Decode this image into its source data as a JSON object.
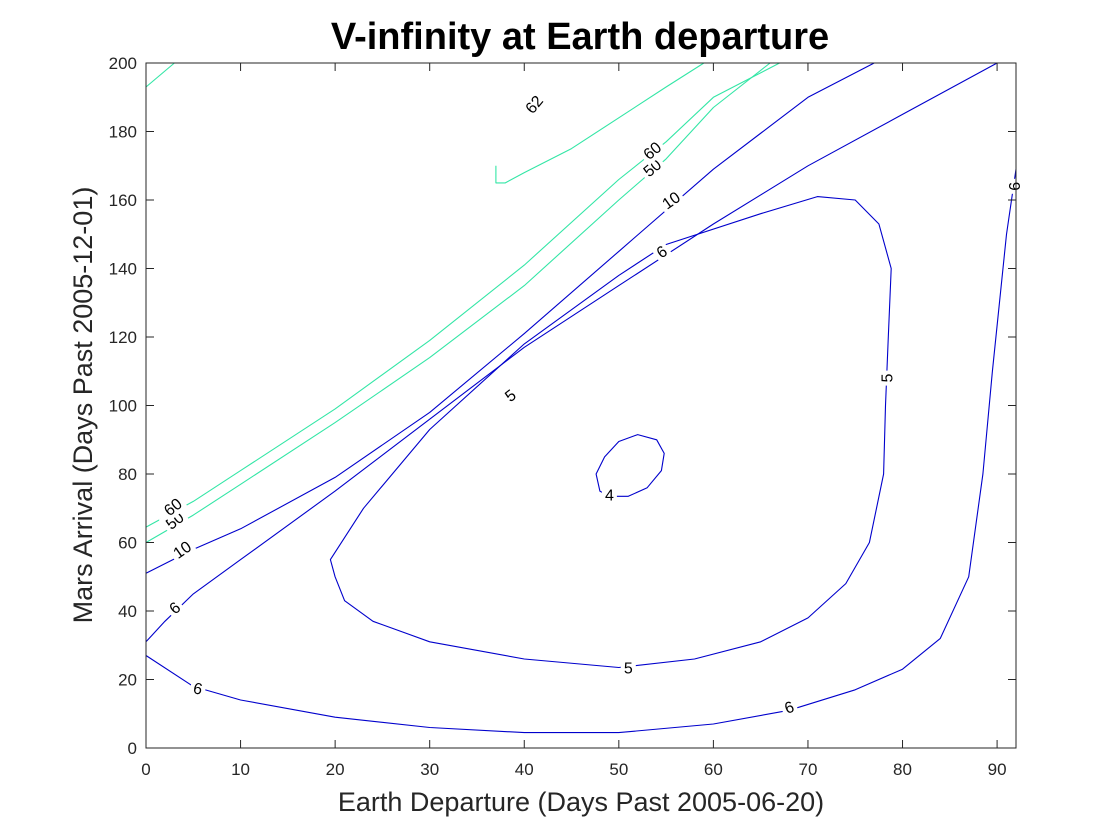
{
  "chart_data": {
    "type": "contour",
    "title": "V-infinity at Earth departure",
    "xlabel": "Earth Departure (Days Past 2005-06-20)",
    "ylabel": "Mars Arrival (Days Past 2005-12-01)",
    "xlim": [
      0,
      92
    ],
    "ylim": [
      0,
      200
    ],
    "xticks": [
      0,
      10,
      20,
      30,
      40,
      50,
      60,
      70,
      80,
      90
    ],
    "yticks": [
      0,
      20,
      40,
      60,
      80,
      100,
      120,
      140,
      160,
      180,
      200
    ],
    "grid": false,
    "colors": {
      "low": "#0000cc",
      "high": "#33e6a6"
    },
    "contours": [
      {
        "level": 4,
        "color": "#0000cc",
        "closed": true,
        "points": [
          [
            48,
            75
          ],
          [
            47.6,
            80
          ],
          [
            48.5,
            85
          ],
          [
            50,
            89.5
          ],
          [
            52,
            91.5
          ],
          [
            54,
            90
          ],
          [
            54.8,
            86
          ],
          [
            54.5,
            81
          ],
          [
            53,
            76
          ],
          [
            51,
            73.5
          ],
          [
            49,
            73.5
          ]
        ]
      },
      {
        "level": 5,
        "color": "#0000cc",
        "closed": true,
        "points": [
          [
            20,
            50
          ],
          [
            21,
            43
          ],
          [
            24,
            37
          ],
          [
            30,
            31
          ],
          [
            40,
            26
          ],
          [
            50,
            23.5
          ],
          [
            58,
            26
          ],
          [
            65,
            31
          ],
          [
            70,
            38
          ],
          [
            74,
            48
          ],
          [
            76.5,
            60
          ],
          [
            78,
            80
          ],
          [
            78.2,
            100
          ],
          [
            78.5,
            120
          ],
          [
            78.8,
            140
          ],
          [
            77.5,
            153
          ],
          [
            75,
            160
          ],
          [
            71,
            161
          ],
          [
            65,
            156
          ],
          [
            55,
            147
          ],
          [
            50,
            138
          ],
          [
            40,
            118
          ],
          [
            30,
            93
          ],
          [
            23,
            70
          ],
          [
            19.5,
            55
          ]
        ]
      },
      {
        "level": 6,
        "color": "#0000cc",
        "closed": false,
        "points": [
          [
            0,
            27
          ],
          [
            5,
            18
          ],
          [
            10,
            14
          ],
          [
            20,
            9
          ],
          [
            30,
            6
          ],
          [
            40,
            4.5
          ],
          [
            50,
            4.5
          ],
          [
            60,
            7
          ],
          [
            68,
            11
          ],
          [
            75,
            17
          ],
          [
            80,
            23
          ],
          [
            84,
            32
          ],
          [
            87,
            50
          ],
          [
            88.5,
            80
          ],
          [
            89.5,
            110
          ],
          [
            91,
            150
          ],
          [
            92,
            169
          ]
        ]
      },
      {
        "level": 6,
        "color": "#0000cc",
        "closed": false,
        "points": [
          [
            0,
            31
          ],
          [
            2,
            37
          ],
          [
            5,
            45
          ],
          [
            10,
            55
          ],
          [
            20,
            75
          ],
          [
            30,
            96
          ],
          [
            40,
            117
          ],
          [
            50,
            135
          ],
          [
            60,
            153
          ],
          [
            70,
            170
          ],
          [
            80,
            185
          ],
          [
            90,
            200
          ]
        ]
      },
      {
        "level": 10,
        "color": "#0000cc",
        "closed": false,
        "points": [
          [
            0,
            51
          ],
          [
            5,
            58
          ],
          [
            10,
            64
          ],
          [
            20,
            79
          ],
          [
            30,
            98
          ],
          [
            40,
            121
          ],
          [
            50,
            145
          ],
          [
            60,
            169
          ],
          [
            70,
            190
          ],
          [
            77,
            200
          ]
        ]
      },
      {
        "level": 50,
        "color": "#33e6a6",
        "closed": false,
        "points": [
          [
            0,
            60
          ],
          [
            5,
            68
          ],
          [
            10,
            77
          ],
          [
            20,
            95
          ],
          [
            30,
            114
          ],
          [
            40,
            135
          ],
          [
            50,
            160
          ],
          [
            55,
            172
          ],
          [
            60,
            187
          ],
          [
            66,
            200
          ]
        ]
      },
      {
        "level": 60,
        "color": "#33e6a6",
        "closed": false,
        "points": [
          [
            0,
            64.5
          ],
          [
            5,
            72
          ],
          [
            10,
            81
          ],
          [
            20,
            99
          ],
          [
            30,
            119
          ],
          [
            40,
            141
          ],
          [
            50,
            166
          ],
          [
            55,
            177
          ],
          [
            60,
            190
          ],
          [
            67,
            200
          ]
        ]
      },
      {
        "level": 62,
        "color": "#33e6a6",
        "closed": false,
        "points": [
          [
            37,
            170
          ],
          [
            37,
            165
          ],
          [
            38,
            165
          ],
          [
            40,
            168
          ],
          [
            45,
            175
          ],
          [
            50,
            184
          ],
          [
            55,
            193
          ],
          [
            59,
            200
          ]
        ]
      },
      {
        "level": 62,
        "color": "#33e6a6",
        "closed": false,
        "points": [
          [
            0,
            193
          ],
          [
            3,
            200
          ]
        ]
      }
    ],
    "labels": [
      {
        "text": "4",
        "x": 49,
        "y": 74,
        "angle": 0
      },
      {
        "text": "5",
        "x": 51,
        "y": 23.5,
        "angle": 0
      },
      {
        "text": "5",
        "x": 38.5,
        "y": 103,
        "angle": -38
      },
      {
        "text": "5",
        "x": 78.3,
        "y": 108,
        "angle": -90
      },
      {
        "text": "6",
        "x": 5.5,
        "y": 17.5,
        "angle": 12
      },
      {
        "text": "6",
        "x": 68,
        "y": 12,
        "angle": -20
      },
      {
        "text": "6",
        "x": 91.8,
        "y": 164,
        "angle": -90
      },
      {
        "text": "6",
        "x": 3,
        "y": 41,
        "angle": -40
      },
      {
        "text": "6",
        "x": 54.5,
        "y": 145,
        "angle": -35
      },
      {
        "text": "10",
        "x": 3.8,
        "y": 58,
        "angle": -35
      },
      {
        "text": "10",
        "x": 55.5,
        "y": 160,
        "angle": -35
      },
      {
        "text": "50",
        "x": 3,
        "y": 66.5,
        "angle": -38
      },
      {
        "text": "50",
        "x": 53.5,
        "y": 169.5,
        "angle": -40
      },
      {
        "text": "60",
        "x": 2.8,
        "y": 70.5,
        "angle": -38
      },
      {
        "text": "60",
        "x": 53.5,
        "y": 174.5,
        "angle": -40
      },
      {
        "text": "62",
        "x": 41,
        "y": 188,
        "angle": -50
      }
    ]
  }
}
